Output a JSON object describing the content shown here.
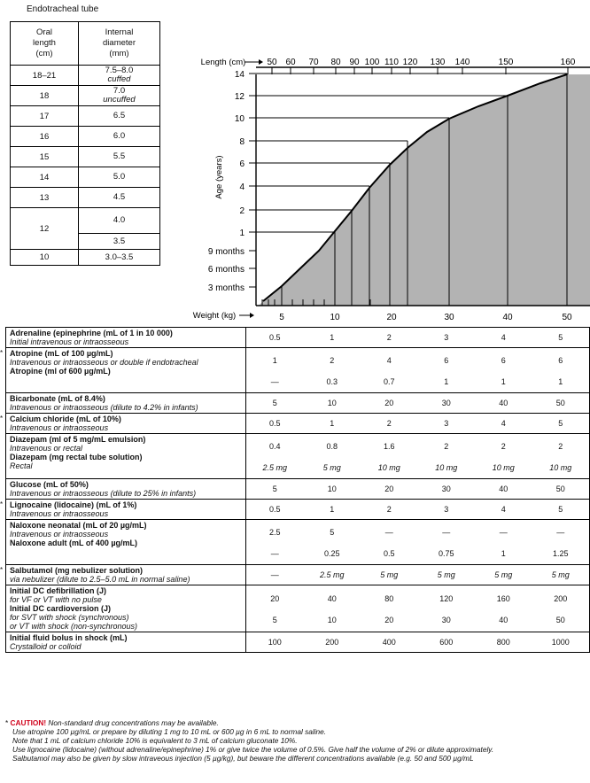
{
  "ett": {
    "title": "Endotracheal tube",
    "col1": [
      "Oral",
      "length",
      "(cm)"
    ],
    "col2": [
      "Internal",
      "diameter",
      "(mm)"
    ],
    "rows": [
      {
        "length": "18–21",
        "diameter": "7.5–8.0",
        "note": "cuffed"
      },
      {
        "length": "18",
        "diameter": "7.0",
        "note": "uncuffed"
      },
      {
        "length": "17",
        "diameter": "6.5",
        "note": ""
      },
      {
        "length": "16",
        "diameter": "6.0",
        "note": ""
      },
      {
        "length": "15",
        "diameter": "5.5",
        "note": ""
      },
      {
        "length": "14",
        "diameter": "5.0",
        "note": ""
      },
      {
        "length": "13",
        "diameter": "4.5",
        "note": ""
      },
      {
        "length": "12",
        "diameter": "4.0",
        "note": ""
      },
      {
        "length": "",
        "diameter": "3.5",
        "note": ""
      },
      {
        "length": "10",
        "diameter": "3.0–3.5",
        "note": ""
      }
    ]
  },
  "nomogram": {
    "length_label": "Length (cm)",
    "length_ticks": [
      "50",
      "60",
      "70",
      "80",
      "90",
      "100",
      "110",
      "120",
      "130",
      "140",
      "150",
      "160"
    ],
    "age_label": "Age (years)",
    "age_ticks": [
      "14",
      "12",
      "10",
      "8",
      "6",
      "4",
      "2",
      "1"
    ],
    "month_ticks": [
      "9 months",
      "6 months",
      "3 months"
    ],
    "weight_label": "Weight (kg)",
    "weight_ticks": [
      "5",
      "10",
      "20",
      "30",
      "40",
      "50"
    ]
  },
  "drugs": [
    {
      "star": "",
      "lines": [
        {
          "name": "Adrenaline (epinephrine (mL of 1 in 10 000)",
          "route": "Initial intravenous or intraosseous"
        }
      ],
      "doses": [
        [
          "0.5",
          "1",
          "2",
          "3",
          "4",
          "5"
        ]
      ]
    },
    {
      "star": "*",
      "lines": [
        {
          "name": "Atropine (mL of 100 µg/mL)",
          "route": "Intravenous or intraosseous or double if endotracheal"
        },
        {
          "name": "Atropine (ml of 600 µg/mL)",
          "route": ""
        }
      ],
      "doses": [
        [
          "1",
          "2",
          "4",
          "6",
          "6",
          "6"
        ],
        [
          "—",
          "0.3",
          "0.7",
          "1",
          "1",
          "1"
        ]
      ]
    },
    {
      "star": "",
      "lines": [
        {
          "name": "Bicarbonate (mL of 8.4%)",
          "route": "Intravenous or intraosseous (dilute to 4.2% in infants)"
        }
      ],
      "doses": [
        [
          "5",
          "10",
          "20",
          "30",
          "40",
          "50"
        ]
      ]
    },
    {
      "star": "*",
      "lines": [
        {
          "name": "Calcium chloride (mL of 10%)",
          "route": "Intravenous or intraosseous"
        }
      ],
      "doses": [
        [
          "0.5",
          "1",
          "2",
          "3",
          "4",
          "5"
        ]
      ]
    },
    {
      "star": "",
      "lines": [
        {
          "name": "Diazepam (ml of 5 mg/mL emulsion)",
          "route": "Intravenous or rectal"
        },
        {
          "name": "Diazepam (mg rectal tube solution)",
          "route": "Rectal"
        }
      ],
      "doses": [
        [
          "0.4",
          "0.8",
          "1.6",
          "2",
          "2",
          "2"
        ],
        [
          "2.5 mg",
          "5 mg",
          "10 mg",
          "10 mg",
          "10 mg",
          "10 mg"
        ]
      ]
    },
    {
      "star": "",
      "lines": [
        {
          "name": "Glucose (mL of 50%)",
          "route": "Intravenous or intraosseous (dilute to 25% in infants)"
        }
      ],
      "doses": [
        [
          "5",
          "10",
          "20",
          "30",
          "40",
          "50"
        ]
      ]
    },
    {
      "star": "*",
      "lines": [
        {
          "name": "Lignocaine (lidocaine) (mL of 1%)",
          "route": "Intravenous or intraosseous"
        }
      ],
      "doses": [
        [
          "0.5",
          "1",
          "2",
          "3",
          "4",
          "5"
        ]
      ]
    },
    {
      "star": "",
      "lines": [
        {
          "name": "Naloxone neonatal (mL of 20 µg/mL)",
          "route": "Intravenous or intraosseous"
        },
        {
          "name": "Naloxone adult (mL of 400 µg/mL)",
          "route": ""
        }
      ],
      "doses": [
        [
          "2.5",
          "5",
          "—",
          "—",
          "—",
          "—"
        ],
        [
          "—",
          "0.25",
          "0.5",
          "0.75",
          "1",
          "1.25"
        ]
      ]
    },
    {
      "star": "*",
      "lines": [
        {
          "name": "Salbutamol (mg nebulizer solution)",
          "route": "via nebulizer (dilute to 2.5–5.0 mL in normal saline)"
        }
      ],
      "doses": [
        [
          "—",
          "2.5 mg",
          "5 mg",
          "5 mg",
          "5 mg",
          "5 mg"
        ]
      ]
    },
    {
      "star": "",
      "lines": [
        {
          "name": "Initial DC defibrillation (J)",
          "route": "for VF or VT with no pulse"
        },
        {
          "name": "Initial DC cardioversion (J)",
          "route": "for SVT with shock (synchronous)\nor VT with shock (non-synchronous)"
        }
      ],
      "doses": [
        [
          "20",
          "40",
          "80",
          "120",
          "160",
          "200"
        ],
        [
          "5",
          "10",
          "20",
          "30",
          "40",
          "50"
        ]
      ]
    },
    {
      "star": "",
      "lines": [
        {
          "name": "Initial fluid bolus in shock (mL)",
          "route": "Crystalloid or colloid"
        }
      ],
      "doses": [
        [
          "100",
          "200",
          "400",
          "600",
          "800",
          "1000"
        ]
      ]
    }
  ],
  "footnotes": {
    "star": "*",
    "caution": "CAUTION!",
    "l1": "Non-standard drug concentrations may be available.",
    "l2": "Use atropine 100 µg/mL or prepare by diluting 1 mg to 10 mL or 600 µg in 6 mL to normal saline.",
    "l3": "Note that 1 mL of calcium chloride 10% is equivalent to 3 mL of calcium gluconate 10%.",
    "l4": "Use lignocaine (lidocaine) (without adrenaline/epinephrine) 1% or give twice the volume of 0.5%. Give half the volume of 2% or dilute approximately.",
    "l5": "Salbutamol may also be given by slow intraveous injection (5 µg/kg), but beware the different concentrations available (e.g. 50 and 500 µg/mL"
  },
  "colors": {
    "fill": "#b3b3b3",
    "caution": "#d0021b"
  }
}
